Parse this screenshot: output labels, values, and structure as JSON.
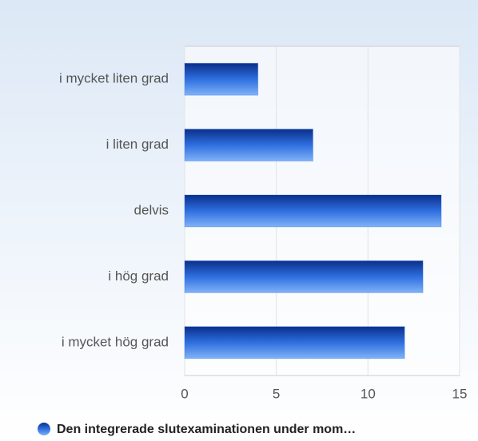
{
  "chart_data": {
    "type": "bar",
    "orientation": "horizontal",
    "categories": [
      "i mycket liten grad",
      "i liten grad",
      "delvis",
      "i hög grad",
      "i mycket hög grad"
    ],
    "series": [
      {
        "name": "Den integrerade slutexaminationen under mom…",
        "color": "#2f6fe0",
        "values": [
          4,
          7,
          14,
          13,
          12
        ]
      }
    ],
    "xlim": [
      0,
      15
    ],
    "xticks": [
      0,
      5,
      10,
      15
    ],
    "grid": true,
    "legend": "bottom"
  }
}
